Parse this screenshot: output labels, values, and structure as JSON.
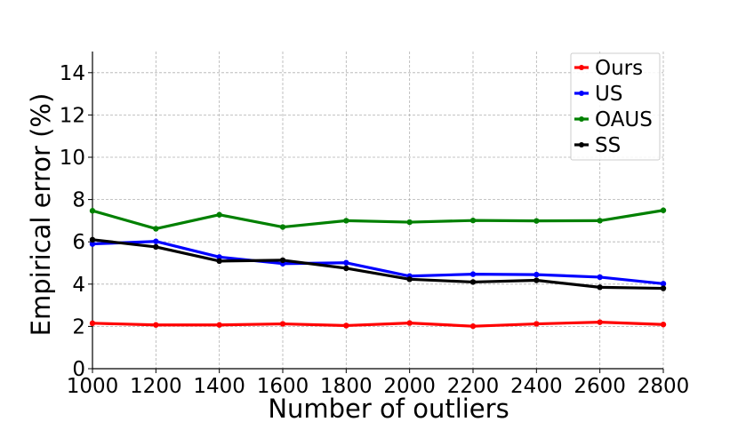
{
  "chart_data": {
    "type": "line",
    "title": "",
    "xlabel": "Number of outliers",
    "ylabel": "Empirical error (%)",
    "xlim": [
      1000,
      2800
    ],
    "ylim": [
      0,
      15
    ],
    "x": [
      1000,
      1200,
      1400,
      1600,
      1800,
      2000,
      2200,
      2400,
      2600,
      2800
    ],
    "xticks": [
      1000,
      1200,
      1400,
      1600,
      1800,
      2000,
      2200,
      2400,
      2600,
      2800
    ],
    "yticks": [
      0,
      2,
      4,
      6,
      8,
      10,
      12,
      14
    ],
    "grid": true,
    "legend_position": "top-right",
    "series": [
      {
        "name": "Ours",
        "color": "#ff0000",
        "values": [
          2.15,
          2.07,
          2.07,
          2.12,
          2.04,
          2.16,
          2.01,
          2.12,
          2.2,
          2.09
        ]
      },
      {
        "name": "US",
        "color": "#0000ff",
        "values": [
          5.9,
          6.02,
          5.28,
          4.97,
          5.01,
          4.38,
          4.47,
          4.45,
          4.33,
          4.02
        ]
      },
      {
        "name": "OAUS",
        "color": "#008000",
        "values": [
          7.47,
          6.62,
          7.28,
          6.7,
          7.0,
          6.93,
          7.01,
          6.99,
          7.0,
          7.49
        ]
      },
      {
        "name": "SS",
        "color": "#000000",
        "values": [
          6.1,
          5.76,
          5.09,
          5.13,
          4.75,
          4.23,
          4.1,
          4.18,
          3.85,
          3.8
        ]
      }
    ]
  }
}
